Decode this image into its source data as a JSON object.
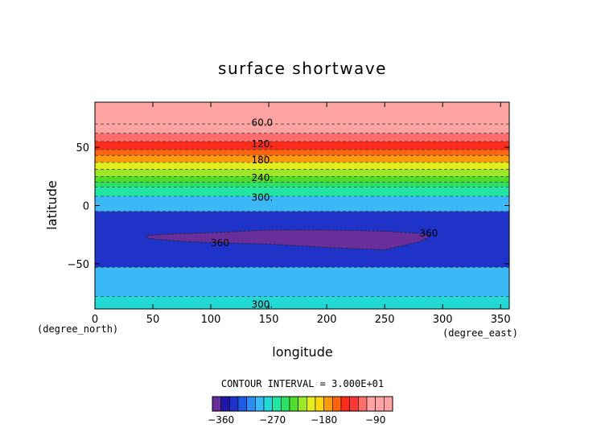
{
  "chart_data": {
    "type": "heatmap",
    "title": "surface shortwave",
    "xlabel": "longitude",
    "ylabel": "latitude",
    "x_units": "(degree_east)",
    "y_units": "(degree_north)",
    "xlim": [
      0,
      357.5
    ],
    "ylim": [
      -88.75,
      88.75
    ],
    "x_ticks": [
      0,
      50,
      100,
      150,
      200,
      250,
      300,
      350
    ],
    "x_tick_labels": [
      "0",
      "50",
      "100",
      "150",
      "200",
      "250",
      "300",
      "350"
    ],
    "y_ticks": [
      50,
      0,
      -50
    ],
    "y_tick_labels": [
      "50",
      "0",
      "−50"
    ],
    "contour_interval_text": "CONTOUR INTERVAL = 3.000E+01",
    "contour_interval": 30,
    "levels": [
      -375,
      -360,
      -345,
      -330,
      -315,
      -300,
      -285,
      -270,
      -255,
      -240,
      -225,
      -210,
      -195,
      -180,
      -165,
      -150,
      -135,
      -120,
      -105,
      -90,
      -75,
      -60
    ],
    "colorbar_tick_values": [
      -360,
      -270,
      -180,
      -90
    ],
    "colorbar_tick_labels": [
      "−360",
      "−270",
      "−180",
      "−90"
    ],
    "colors": [
      "#6a2e9a",
      "#1e16a8",
      "#1f33c8",
      "#1f5be8",
      "#2d8cf3",
      "#3bb8f6",
      "#22d9d6",
      "#22e6a4",
      "#2de066",
      "#52dc2a",
      "#9ce824",
      "#e0ee1e",
      "#ffd80f",
      "#ff9a0a",
      "#ff6410",
      "#ff2b1d",
      "#ff3636",
      "#ff6d6d",
      "#ffa3a3"
    ],
    "bands": [
      {
        "lat_min": 70,
        "lat_max": 88.75,
        "value": -65
      },
      {
        "lat_min": 62,
        "lat_max": 70,
        "value": -95
      },
      {
        "lat_min": 55,
        "lat_max": 62,
        "value": -110
      },
      {
        "lat_min": 48,
        "lat_max": 55,
        "value": -140
      },
      {
        "lat_min": 43,
        "lat_max": 48,
        "value": -160
      },
      {
        "lat_min": 37,
        "lat_max": 43,
        "value": -175
      },
      {
        "lat_min": 31,
        "lat_max": 37,
        "value": -200
      },
      {
        "lat_min": 25,
        "lat_max": 31,
        "value": -215
      },
      {
        "lat_min": 20,
        "lat_max": 25,
        "value": -235
      },
      {
        "lat_min": 16,
        "lat_max": 20,
        "value": -255
      },
      {
        "lat_min": 8,
        "lat_max": 16,
        "value": -265
      },
      {
        "lat_min": -5,
        "lat_max": 8,
        "value": -295
      },
      {
        "lat_min": -53,
        "lat_max": -5,
        "value": -340
      },
      {
        "lat_min": -78,
        "lat_max": -53,
        "value": -300
      },
      {
        "lat_min": -88.75,
        "lat_max": -78,
        "value": -275
      }
    ],
    "min_region": {
      "value": -365,
      "outline": [
        [
          45,
          -26
        ],
        [
          55,
          -25
        ],
        [
          80,
          -24
        ],
        [
          110,
          -23
        ],
        [
          150,
          -21
        ],
        [
          200,
          -21
        ],
        [
          250,
          -22
        ],
        [
          280,
          -24
        ],
        [
          290,
          -26
        ],
        [
          280,
          -31
        ],
        [
          250,
          -38
        ],
        [
          200,
          -36
        ],
        [
          150,
          -33
        ],
        [
          110,
          -32
        ],
        [
          80,
          -31
        ],
        [
          55,
          -29
        ],
        [
          45,
          -28
        ]
      ]
    },
    "contour_labels": [
      {
        "text": "60.0",
        "lon": 135,
        "lat": 71
      },
      {
        "text": "120.",
        "lon": 135,
        "lat": 53
      },
      {
        "text": "180.",
        "lon": 135,
        "lat": 39
      },
      {
        "text": "240.",
        "lon": 135,
        "lat": 24
      },
      {
        "text": "300.",
        "lon": 135,
        "lat": 7
      },
      {
        "text": "360",
        "lon": 100,
        "lat": -32
      },
      {
        "text": "360",
        "lon": 280,
        "lat": -24
      },
      {
        "text": "300.",
        "lon": 135,
        "lat": -85
      }
    ]
  }
}
